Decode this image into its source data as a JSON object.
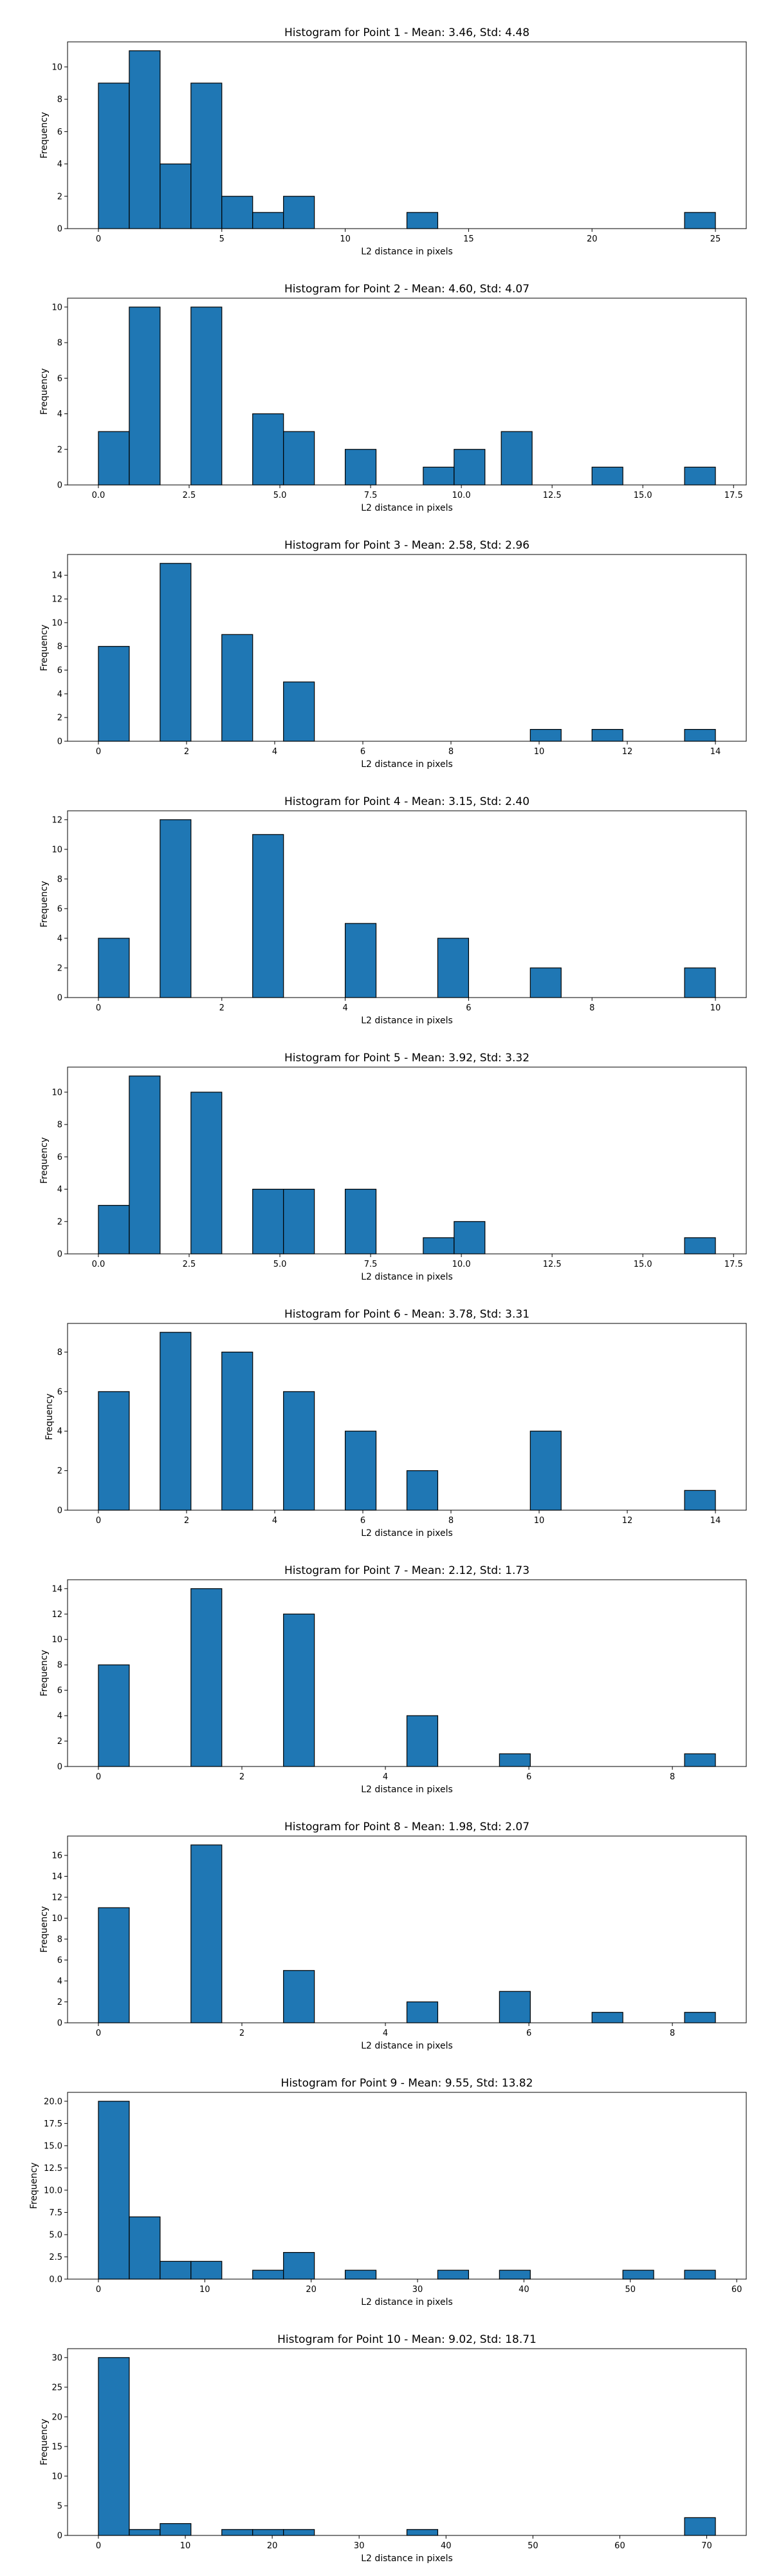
{
  "figure": {
    "bar_color": "#1f77b4",
    "edge_color": "#000000",
    "background": "#ffffff"
  },
  "chart_data": [
    {
      "type": "bar",
      "title": "Histogram for Point 1 - Mean: 3.46, Std: 4.48",
      "xlabel": "L2 distance in pixels",
      "ylabel": "Frequency",
      "xlim": [
        -1.25,
        26.25
      ],
      "ylim": [
        0,
        11.55
      ],
      "xticks": [
        0,
        5,
        10,
        15,
        20,
        25
      ],
      "xtick_labels": [
        "0",
        "5",
        "10",
        "15",
        "20",
        "25"
      ],
      "yticks": [
        0,
        2,
        4,
        6,
        8,
        10
      ],
      "ytick_labels": [
        "0",
        "2",
        "4",
        "6",
        "8",
        "10"
      ],
      "bins": [
        [
          0,
          1.25,
          9
        ],
        [
          1.25,
          2.5,
          11
        ],
        [
          2.5,
          3.75,
          4
        ],
        [
          3.75,
          5,
          9
        ],
        [
          5,
          6.25,
          2
        ],
        [
          6.25,
          7.5,
          1
        ],
        [
          7.5,
          8.75,
          2
        ],
        [
          12.5,
          13.75,
          1
        ],
        [
          23.75,
          25,
          1
        ]
      ]
    },
    {
      "type": "bar",
      "title": "Histogram for Point 2 - Mean: 4.60, Std: 4.07",
      "xlabel": "L2 distance in pixels",
      "ylabel": "Frequency",
      "xlim": [
        -0.85,
        17.85
      ],
      "ylim": [
        0,
        10.5
      ],
      "xticks": [
        0,
        2.5,
        5,
        7.5,
        10,
        12.5,
        15,
        17.5
      ],
      "xtick_labels": [
        "0.0",
        "2.5",
        "5.0",
        "7.5",
        "10.0",
        "12.5",
        "15.0",
        "17.5"
      ],
      "yticks": [
        0,
        2,
        4,
        6,
        8,
        10
      ],
      "ytick_labels": [
        "0",
        "2",
        "4",
        "6",
        "8",
        "10"
      ],
      "bins": [
        [
          0,
          0.85,
          3
        ],
        [
          0.85,
          1.7,
          10
        ],
        [
          2.55,
          3.4,
          10
        ],
        [
          4.25,
          5.1,
          4
        ],
        [
          5.1,
          5.95,
          3
        ],
        [
          6.8,
          7.65,
          2
        ],
        [
          8.95,
          9.8,
          1
        ],
        [
          9.8,
          10.65,
          2
        ],
        [
          11.1,
          11.95,
          3
        ],
        [
          13.6,
          14.45,
          1
        ],
        [
          16.15,
          17,
          1
        ]
      ]
    },
    {
      "type": "bar",
      "title": "Histogram for Point 3 - Mean: 2.58, Std: 2.96",
      "xlabel": "L2 distance in pixels",
      "ylabel": "Frequency",
      "xlim": [
        -0.7,
        14.7
      ],
      "ylim": [
        0,
        15.75
      ],
      "xticks": [
        0,
        2,
        4,
        6,
        8,
        10,
        12,
        14
      ],
      "xtick_labels": [
        "0",
        "2",
        "4",
        "6",
        "8",
        "10",
        "12",
        "14"
      ],
      "yticks": [
        0,
        2,
        4,
        6,
        8,
        10,
        12,
        14
      ],
      "ytick_labels": [
        "0",
        "2",
        "4",
        "6",
        "8",
        "10",
        "12",
        "14"
      ],
      "bins": [
        [
          0,
          0.7,
          8
        ],
        [
          1.4,
          2.1,
          15
        ],
        [
          2.8,
          3.5,
          9
        ],
        [
          4.2,
          4.9,
          5
        ],
        [
          9.8,
          10.5,
          1
        ],
        [
          11.2,
          11.9,
          1
        ],
        [
          13.3,
          14,
          1
        ]
      ]
    },
    {
      "type": "bar",
      "title": "Histogram for Point 4 - Mean: 3.15, Std: 2.40",
      "xlabel": "L2 distance in pixels",
      "ylabel": "Frequency",
      "xlim": [
        -0.5,
        10.5
      ],
      "ylim": [
        0,
        12.6
      ],
      "xticks": [
        0,
        2,
        4,
        6,
        8,
        10
      ],
      "xtick_labels": [
        "0",
        "2",
        "4",
        "6",
        "8",
        "10"
      ],
      "yticks": [
        0,
        2,
        4,
        6,
        8,
        10,
        12
      ],
      "ytick_labels": [
        "0",
        "2",
        "4",
        "6",
        "8",
        "10",
        "12"
      ],
      "bins": [
        [
          0,
          0.5,
          4
        ],
        [
          1,
          1.5,
          12
        ],
        [
          2.5,
          3,
          11
        ],
        [
          4,
          4.5,
          5
        ],
        [
          5.5,
          6,
          4
        ],
        [
          7,
          7.5,
          2
        ],
        [
          9.5,
          10,
          2
        ]
      ]
    },
    {
      "type": "bar",
      "title": "Histogram for Point 5 - Mean: 3.92, Std: 3.32",
      "xlabel": "L2 distance in pixels",
      "ylabel": "Frequency",
      "xlim": [
        -0.85,
        17.85
      ],
      "ylim": [
        0,
        11.55
      ],
      "xticks": [
        0,
        2.5,
        5,
        7.5,
        10,
        12.5,
        15,
        17.5
      ],
      "xtick_labels": [
        "0.0",
        "2.5",
        "5.0",
        "7.5",
        "10.0",
        "12.5",
        "15.0",
        "17.5"
      ],
      "yticks": [
        0,
        2,
        4,
        6,
        8,
        10
      ],
      "ytick_labels": [
        "0",
        "2",
        "4",
        "6",
        "8",
        "10"
      ],
      "bins": [
        [
          0,
          0.85,
          3
        ],
        [
          0.85,
          1.7,
          11
        ],
        [
          2.55,
          3.4,
          10
        ],
        [
          4.25,
          5.1,
          4
        ],
        [
          5.1,
          5.95,
          4
        ],
        [
          6.8,
          7.65,
          4
        ],
        [
          8.95,
          9.8,
          1
        ],
        [
          9.8,
          10.65,
          2
        ],
        [
          16.15,
          17,
          1
        ]
      ]
    },
    {
      "type": "bar",
      "title": "Histogram for Point 6 - Mean: 3.78, Std: 3.31",
      "xlabel": "L2 distance in pixels",
      "ylabel": "Frequency",
      "xlim": [
        -0.7,
        14.7
      ],
      "ylim": [
        0,
        9.45
      ],
      "xticks": [
        0,
        2,
        4,
        6,
        8,
        10,
        12,
        14
      ],
      "xtick_labels": [
        "0",
        "2",
        "4",
        "6",
        "8",
        "10",
        "12",
        "14"
      ],
      "yticks": [
        0,
        2,
        4,
        6,
        8
      ],
      "ytick_labels": [
        "0",
        "2",
        "4",
        "6",
        "8"
      ],
      "bins": [
        [
          0,
          0.7,
          6
        ],
        [
          1.4,
          2.1,
          9
        ],
        [
          2.8,
          3.5,
          8
        ],
        [
          4.2,
          4.9,
          6
        ],
        [
          5.6,
          6.3,
          4
        ],
        [
          7,
          7.7,
          2
        ],
        [
          9.8,
          10.5,
          4
        ],
        [
          13.3,
          14,
          1
        ]
      ]
    },
    {
      "type": "bar",
      "title": "Histogram for Point 7 - Mean: 2.12, Std: 1.73",
      "xlabel": "L2 distance in pixels",
      "ylabel": "Frequency",
      "xlim": [
        -0.43,
        9.03
      ],
      "ylim": [
        0,
        14.7
      ],
      "xticks": [
        0,
        2,
        4,
        6,
        8
      ],
      "xtick_labels": [
        "0",
        "2",
        "4",
        "6",
        "8"
      ],
      "yticks": [
        0,
        2,
        4,
        6,
        8,
        10,
        12,
        14
      ],
      "ytick_labels": [
        "0",
        "2",
        "4",
        "6",
        "8",
        "10",
        "12",
        "14"
      ],
      "bins": [
        [
          0,
          0.43,
          8
        ],
        [
          1.29,
          1.72,
          14
        ],
        [
          2.58,
          3.01,
          12
        ],
        [
          4.3,
          4.73,
          4
        ],
        [
          5.59,
          6.02,
          1
        ],
        [
          8.17,
          8.6,
          1
        ]
      ]
    },
    {
      "type": "bar",
      "title": "Histogram for Point 8 - Mean: 1.98, Std: 2.07",
      "xlabel": "L2 distance in pixels",
      "ylabel": "Frequency",
      "xlim": [
        -0.43,
        9.03
      ],
      "ylim": [
        0,
        17.85
      ],
      "xticks": [
        0,
        2,
        4,
        6,
        8
      ],
      "xtick_labels": [
        "0",
        "2",
        "4",
        "6",
        "8"
      ],
      "yticks": [
        0,
        2,
        4,
        6,
        8,
        10,
        12,
        14,
        16
      ],
      "ytick_labels": [
        "0",
        "2",
        "4",
        "6",
        "8",
        "10",
        "12",
        "14",
        "16"
      ],
      "bins": [
        [
          0,
          0.43,
          11
        ],
        [
          1.29,
          1.72,
          17
        ],
        [
          2.58,
          3.01,
          5
        ],
        [
          4.3,
          4.73,
          2
        ],
        [
          5.59,
          6.02,
          3
        ],
        [
          6.88,
          7.31,
          1
        ],
        [
          8.17,
          8.6,
          1
        ]
      ]
    },
    {
      "type": "bar",
      "title": "Histogram for Point 9 - Mean: 9.55, Std: 13.82",
      "xlabel": "L2 distance in pixels",
      "ylabel": "Frequency",
      "xlim": [
        -2.9,
        60.9
      ],
      "ylim": [
        0,
        21
      ],
      "xticks": [
        0,
        10,
        20,
        30,
        40,
        50,
        60
      ],
      "xtick_labels": [
        "0",
        "10",
        "20",
        "30",
        "40",
        "50",
        "60"
      ],
      "yticks": [
        0,
        2.5,
        5,
        7.5,
        10,
        12.5,
        15,
        17.5,
        20
      ],
      "ytick_labels": [
        "0.0",
        "2.5",
        "5.0",
        "7.5",
        "10.0",
        "12.5",
        "15.0",
        "17.5",
        "20.0"
      ],
      "bins": [
        [
          0,
          2.9,
          20
        ],
        [
          2.9,
          5.8,
          7
        ],
        [
          5.8,
          8.7,
          2
        ],
        [
          8.7,
          11.6,
          2
        ],
        [
          14.5,
          17.4,
          1
        ],
        [
          17.4,
          20.3,
          3
        ],
        [
          23.2,
          26.1,
          1
        ],
        [
          31.9,
          34.8,
          1
        ],
        [
          37.7,
          40.6,
          1
        ],
        [
          49.3,
          52.2,
          1
        ],
        [
          55.1,
          58,
          1
        ]
      ]
    },
    {
      "type": "bar",
      "title": "Histogram for Point 10 - Mean: 9.02, Std: 18.71",
      "xlabel": "L2 distance in pixels",
      "ylabel": "Frequency",
      "xlim": [
        -3.55,
        74.55
      ],
      "ylim": [
        0,
        31.5
      ],
      "xticks": [
        0,
        10,
        20,
        30,
        40,
        50,
        60,
        70
      ],
      "xtick_labels": [
        "0",
        "10",
        "20",
        "30",
        "40",
        "50",
        "60",
        "70"
      ],
      "yticks": [
        0,
        5,
        10,
        15,
        20,
        25,
        30
      ],
      "ytick_labels": [
        "0",
        "5",
        "10",
        "15",
        "20",
        "25",
        "30"
      ],
      "bins": [
        [
          0,
          3.55,
          30
        ],
        [
          3.55,
          7.1,
          1
        ],
        [
          7.1,
          10.65,
          2
        ],
        [
          14.2,
          17.75,
          1
        ],
        [
          17.75,
          21.3,
          1
        ],
        [
          21.3,
          24.85,
          1
        ],
        [
          35.5,
          39.05,
          1
        ],
        [
          67.45,
          71,
          3
        ]
      ]
    }
  ]
}
